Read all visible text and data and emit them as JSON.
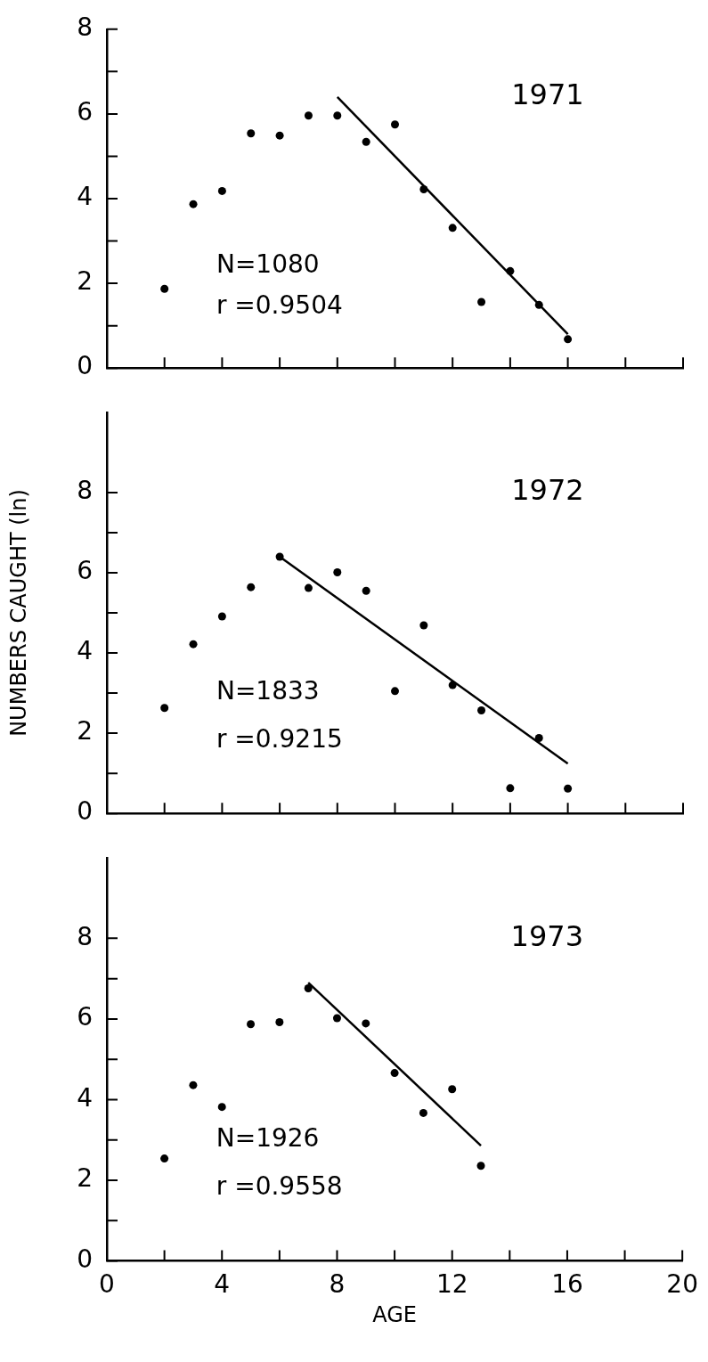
{
  "chart_data": [
    {
      "type": "scatter",
      "title": "1971",
      "annotations": [
        "N=1080",
        "r =0.9504"
      ],
      "marker": "circle",
      "tick_labels": "y",
      "xlim": [
        0,
        20
      ],
      "xticks": [
        0,
        {
          "value": 2,
          "label": null
        },
        4,
        {
          "value": 6,
          "label": null
        },
        8,
        {
          "value": 10,
          "label": null
        },
        12,
        {
          "value": 14,
          "label": null
        },
        16,
        {
          "value": 18,
          "label": null
        },
        20
      ],
      "ylim": [
        0,
        8
      ],
      "yticks": [
        0,
        {
          "value": 1,
          "label": null
        },
        2,
        {
          "value": 3,
          "label": null
        },
        4,
        {
          "value": 5,
          "label": null
        },
        6,
        {
          "value": 7,
          "label": null
        },
        8
      ],
      "series": [
        {
          "type": "scatter",
          "color": "#000000",
          "x": [
            2,
            3,
            4,
            5,
            6,
            7,
            8,
            9,
            10,
            11,
            12,
            13,
            14,
            15,
            16
          ],
          "values": [
            1.87,
            3.87,
            4.18,
            5.54,
            5.49,
            5.96,
            5.96,
            5.34,
            5.75,
            4.22,
            3.31,
            1.56,
            2.29,
            1.49,
            0.68
          ]
        },
        {
          "type": "line",
          "color": "#000000",
          "marker": "none",
          "x": [
            8,
            16
          ],
          "values": [
            6.4,
            0.8
          ]
        }
      ]
    },
    {
      "type": "scatter",
      "title": "1972",
      "ylabel": "NUMBERS CAUGHT (ln)",
      "annotations": [
        "N=1833",
        "r =0.9215"
      ],
      "marker": "circle",
      "tick_labels": "y",
      "xlim": [
        0,
        20
      ],
      "xticks": [
        0,
        {
          "value": 2,
          "label": null
        },
        4,
        {
          "value": 6,
          "label": null
        },
        8,
        {
          "value": 10,
          "label": null
        },
        12,
        {
          "value": 14,
          "label": null
        },
        16,
        {
          "value": 18,
          "label": null
        },
        20
      ],
      "ylim": [
        0,
        10
      ],
      "yticks": [
        0,
        {
          "value": 1,
          "label": null
        },
        2,
        {
          "value": 3,
          "label": null
        },
        4,
        {
          "value": 5,
          "label": null
        },
        6,
        {
          "value": 7,
          "label": null
        },
        8
      ],
      "series": [
        {
          "type": "scatter",
          "color": "#000000",
          "x": [
            2,
            3,
            4,
            5,
            6,
            7,
            8,
            9,
            10,
            11,
            12,
            13,
            14,
            15,
            16
          ],
          "values": [
            2.63,
            4.22,
            4.91,
            5.64,
            6.4,
            5.62,
            6.01,
            5.55,
            3.05,
            4.69,
            3.2,
            2.57,
            0.63,
            1.88,
            0.62
          ]
        },
        {
          "type": "line",
          "color": "#000000",
          "marker": "none",
          "x": [
            6,
            16
          ],
          "values": [
            6.4,
            1.24
          ]
        }
      ]
    },
    {
      "type": "scatter",
      "title": "1973",
      "xlabel": "AGE",
      "annotations": [
        "N=1926",
        "r =0.9558"
      ],
      "marker": "circle",
      "xlim": [
        0,
        20
      ],
      "xticks": [
        0,
        {
          "value": 2,
          "label": null
        },
        4,
        {
          "value": 6,
          "label": null
        },
        8,
        {
          "value": 10,
          "label": null
        },
        12,
        {
          "value": 14,
          "label": null
        },
        16,
        {
          "value": 18,
          "label": null
        },
        20
      ],
      "ylim": [
        0,
        10
      ],
      "yticks": [
        0,
        {
          "value": 1,
          "label": null
        },
        2,
        {
          "value": 3,
          "label": null
        },
        4,
        {
          "value": 5,
          "label": null
        },
        6,
        {
          "value": 7,
          "label": null
        },
        8
      ],
      "series": [
        {
          "type": "scatter",
          "color": "#000000",
          "x": [
            2,
            3,
            4,
            5,
            6,
            7,
            8,
            9,
            10,
            11,
            12,
            13
          ],
          "values": [
            2.54,
            4.36,
            3.82,
            5.87,
            5.92,
            6.76,
            6.02,
            5.89,
            4.66,
            3.67,
            4.26,
            2.36
          ]
        },
        {
          "type": "line",
          "color": "#000000",
          "marker": "none",
          "x": [
            7,
            13
          ],
          "values": [
            6.9,
            2.86
          ]
        }
      ]
    }
  ]
}
